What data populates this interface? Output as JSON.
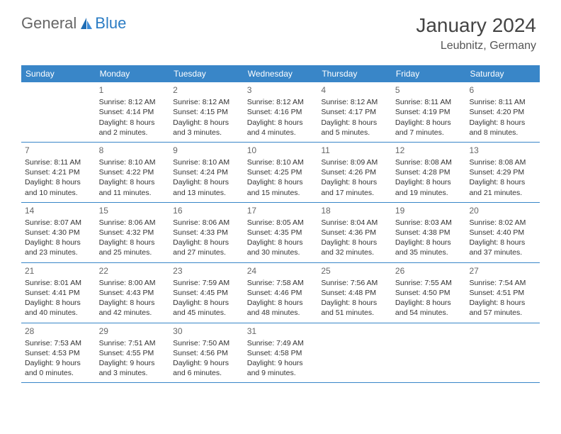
{
  "brand": {
    "part1": "General",
    "part2": "Blue"
  },
  "title": "January 2024",
  "location": "Leubnitz, Germany",
  "day_names": [
    "Sunday",
    "Monday",
    "Tuesday",
    "Wednesday",
    "Thursday",
    "Friday",
    "Saturday"
  ],
  "colors": {
    "header_bg": "#3986c8",
    "header_text": "#ffffff",
    "border": "#3986c8",
    "text": "#333333",
    "daynum": "#666666"
  },
  "weeks": [
    [
      {
        "num": "",
        "sunrise": "",
        "sunset": "",
        "daylight1": "",
        "daylight2": ""
      },
      {
        "num": "1",
        "sunrise": "Sunrise: 8:12 AM",
        "sunset": "Sunset: 4:14 PM",
        "daylight1": "Daylight: 8 hours",
        "daylight2": "and 2 minutes."
      },
      {
        "num": "2",
        "sunrise": "Sunrise: 8:12 AM",
        "sunset": "Sunset: 4:15 PM",
        "daylight1": "Daylight: 8 hours",
        "daylight2": "and 3 minutes."
      },
      {
        "num": "3",
        "sunrise": "Sunrise: 8:12 AM",
        "sunset": "Sunset: 4:16 PM",
        "daylight1": "Daylight: 8 hours",
        "daylight2": "and 4 minutes."
      },
      {
        "num": "4",
        "sunrise": "Sunrise: 8:12 AM",
        "sunset": "Sunset: 4:17 PM",
        "daylight1": "Daylight: 8 hours",
        "daylight2": "and 5 minutes."
      },
      {
        "num": "5",
        "sunrise": "Sunrise: 8:11 AM",
        "sunset": "Sunset: 4:19 PM",
        "daylight1": "Daylight: 8 hours",
        "daylight2": "and 7 minutes."
      },
      {
        "num": "6",
        "sunrise": "Sunrise: 8:11 AM",
        "sunset": "Sunset: 4:20 PM",
        "daylight1": "Daylight: 8 hours",
        "daylight2": "and 8 minutes."
      }
    ],
    [
      {
        "num": "7",
        "sunrise": "Sunrise: 8:11 AM",
        "sunset": "Sunset: 4:21 PM",
        "daylight1": "Daylight: 8 hours",
        "daylight2": "and 10 minutes."
      },
      {
        "num": "8",
        "sunrise": "Sunrise: 8:10 AM",
        "sunset": "Sunset: 4:22 PM",
        "daylight1": "Daylight: 8 hours",
        "daylight2": "and 11 minutes."
      },
      {
        "num": "9",
        "sunrise": "Sunrise: 8:10 AM",
        "sunset": "Sunset: 4:24 PM",
        "daylight1": "Daylight: 8 hours",
        "daylight2": "and 13 minutes."
      },
      {
        "num": "10",
        "sunrise": "Sunrise: 8:10 AM",
        "sunset": "Sunset: 4:25 PM",
        "daylight1": "Daylight: 8 hours",
        "daylight2": "and 15 minutes."
      },
      {
        "num": "11",
        "sunrise": "Sunrise: 8:09 AM",
        "sunset": "Sunset: 4:26 PM",
        "daylight1": "Daylight: 8 hours",
        "daylight2": "and 17 minutes."
      },
      {
        "num": "12",
        "sunrise": "Sunrise: 8:08 AM",
        "sunset": "Sunset: 4:28 PM",
        "daylight1": "Daylight: 8 hours",
        "daylight2": "and 19 minutes."
      },
      {
        "num": "13",
        "sunrise": "Sunrise: 8:08 AM",
        "sunset": "Sunset: 4:29 PM",
        "daylight1": "Daylight: 8 hours",
        "daylight2": "and 21 minutes."
      }
    ],
    [
      {
        "num": "14",
        "sunrise": "Sunrise: 8:07 AM",
        "sunset": "Sunset: 4:30 PM",
        "daylight1": "Daylight: 8 hours",
        "daylight2": "and 23 minutes."
      },
      {
        "num": "15",
        "sunrise": "Sunrise: 8:06 AM",
        "sunset": "Sunset: 4:32 PM",
        "daylight1": "Daylight: 8 hours",
        "daylight2": "and 25 minutes."
      },
      {
        "num": "16",
        "sunrise": "Sunrise: 8:06 AM",
        "sunset": "Sunset: 4:33 PM",
        "daylight1": "Daylight: 8 hours",
        "daylight2": "and 27 minutes."
      },
      {
        "num": "17",
        "sunrise": "Sunrise: 8:05 AM",
        "sunset": "Sunset: 4:35 PM",
        "daylight1": "Daylight: 8 hours",
        "daylight2": "and 30 minutes."
      },
      {
        "num": "18",
        "sunrise": "Sunrise: 8:04 AM",
        "sunset": "Sunset: 4:36 PM",
        "daylight1": "Daylight: 8 hours",
        "daylight2": "and 32 minutes."
      },
      {
        "num": "19",
        "sunrise": "Sunrise: 8:03 AM",
        "sunset": "Sunset: 4:38 PM",
        "daylight1": "Daylight: 8 hours",
        "daylight2": "and 35 minutes."
      },
      {
        "num": "20",
        "sunrise": "Sunrise: 8:02 AM",
        "sunset": "Sunset: 4:40 PM",
        "daylight1": "Daylight: 8 hours",
        "daylight2": "and 37 minutes."
      }
    ],
    [
      {
        "num": "21",
        "sunrise": "Sunrise: 8:01 AM",
        "sunset": "Sunset: 4:41 PM",
        "daylight1": "Daylight: 8 hours",
        "daylight2": "and 40 minutes."
      },
      {
        "num": "22",
        "sunrise": "Sunrise: 8:00 AM",
        "sunset": "Sunset: 4:43 PM",
        "daylight1": "Daylight: 8 hours",
        "daylight2": "and 42 minutes."
      },
      {
        "num": "23",
        "sunrise": "Sunrise: 7:59 AM",
        "sunset": "Sunset: 4:45 PM",
        "daylight1": "Daylight: 8 hours",
        "daylight2": "and 45 minutes."
      },
      {
        "num": "24",
        "sunrise": "Sunrise: 7:58 AM",
        "sunset": "Sunset: 4:46 PM",
        "daylight1": "Daylight: 8 hours",
        "daylight2": "and 48 minutes."
      },
      {
        "num": "25",
        "sunrise": "Sunrise: 7:56 AM",
        "sunset": "Sunset: 4:48 PM",
        "daylight1": "Daylight: 8 hours",
        "daylight2": "and 51 minutes."
      },
      {
        "num": "26",
        "sunrise": "Sunrise: 7:55 AM",
        "sunset": "Sunset: 4:50 PM",
        "daylight1": "Daylight: 8 hours",
        "daylight2": "and 54 minutes."
      },
      {
        "num": "27",
        "sunrise": "Sunrise: 7:54 AM",
        "sunset": "Sunset: 4:51 PM",
        "daylight1": "Daylight: 8 hours",
        "daylight2": "and 57 minutes."
      }
    ],
    [
      {
        "num": "28",
        "sunrise": "Sunrise: 7:53 AM",
        "sunset": "Sunset: 4:53 PM",
        "daylight1": "Daylight: 9 hours",
        "daylight2": "and 0 minutes."
      },
      {
        "num": "29",
        "sunrise": "Sunrise: 7:51 AM",
        "sunset": "Sunset: 4:55 PM",
        "daylight1": "Daylight: 9 hours",
        "daylight2": "and 3 minutes."
      },
      {
        "num": "30",
        "sunrise": "Sunrise: 7:50 AM",
        "sunset": "Sunset: 4:56 PM",
        "daylight1": "Daylight: 9 hours",
        "daylight2": "and 6 minutes."
      },
      {
        "num": "31",
        "sunrise": "Sunrise: 7:49 AM",
        "sunset": "Sunset: 4:58 PM",
        "daylight1": "Daylight: 9 hours",
        "daylight2": "and 9 minutes."
      },
      {
        "num": "",
        "sunrise": "",
        "sunset": "",
        "daylight1": "",
        "daylight2": ""
      },
      {
        "num": "",
        "sunrise": "",
        "sunset": "",
        "daylight1": "",
        "daylight2": ""
      },
      {
        "num": "",
        "sunrise": "",
        "sunset": "",
        "daylight1": "",
        "daylight2": ""
      }
    ]
  ]
}
